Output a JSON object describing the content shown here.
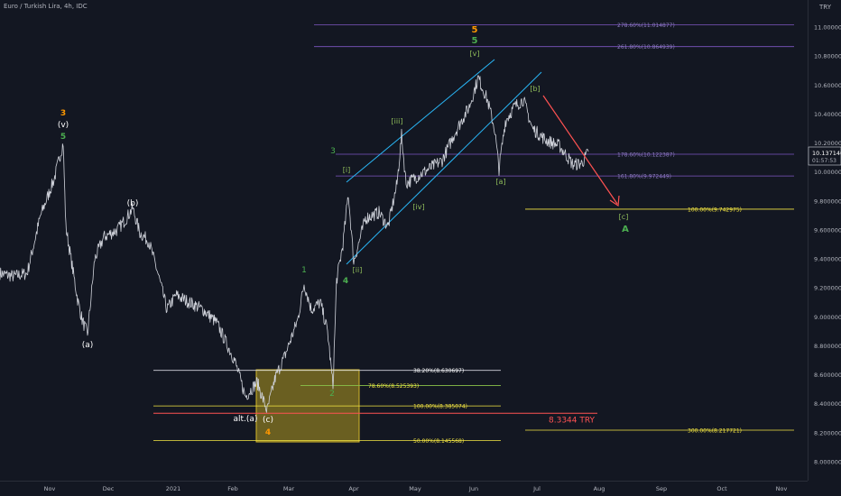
{
  "header": {
    "symbol": "Euro / Turkish Lira, 4h, IDC",
    "currency": "TRY"
  },
  "colors": {
    "background": "#131722",
    "price_line": "#d1d4dc",
    "axis_text": "#b2b5be",
    "fib_blue": "#7e57c2",
    "fib_yellow": "#f5e742",
    "fib_white": "#d1d4dc",
    "fib_green": "#8bc34a",
    "channel": "#29b6f6",
    "arrow": "#ff5252",
    "target_box": "#b39a21",
    "wave_orange": "#ff9800",
    "wave_green": "#4caf50",
    "wave_white": "#ffffff",
    "wave_olive": "#8fbc5a"
  },
  "chart_data": {
    "type": "line",
    "title": "Euro / Turkish Lira, 4h, IDC",
    "xlabel": "",
    "ylabel": "",
    "ylim": [
      7.95,
      11.15
    ],
    "x_ticks": [
      "Nov",
      "Dec",
      "2021",
      "Feb",
      "Mar",
      "Apr",
      "May",
      "Jun",
      "Jul",
      "Aug",
      "Sep",
      "Oct",
      "Nov"
    ],
    "y_ticks": [
      "11.000000",
      "10.800000",
      "10.600000",
      "10.400000",
      "10.200000",
      "10.000000",
      "9.800000",
      "9.600000",
      "9.400000",
      "9.200000",
      "9.000000",
      "8.800000",
      "8.600000",
      "8.400000",
      "8.200000",
      "8.000000"
    ],
    "y_tick_values": [
      11.0,
      10.8,
      10.6,
      10.4,
      10.2,
      10.0,
      9.8,
      9.6,
      9.4,
      9.2,
      9.0,
      8.8,
      8.6,
      8.4,
      8.2,
      8.0
    ],
    "series": [
      {
        "values": [
          [
            0,
            9.3
          ],
          [
            15,
            9.28
          ],
          [
            30,
            9.3
          ],
          [
            45,
            9.7
          ],
          [
            60,
            9.95
          ],
          [
            70,
            10.2
          ],
          [
            73,
            9.62
          ],
          [
            80,
            9.35
          ],
          [
            86,
            9.12
          ],
          [
            91,
            8.98
          ],
          [
            97,
            8.88
          ],
          [
            105,
            9.4
          ],
          [
            115,
            9.55
          ],
          [
            130,
            9.6
          ],
          [
            140,
            9.68
          ],
          [
            147,
            9.75
          ],
          [
            155,
            9.58
          ],
          [
            165,
            9.52
          ],
          [
            175,
            9.3
          ],
          [
            185,
            9.05
          ],
          [
            195,
            9.15
          ],
          [
            210,
            9.1
          ],
          [
            225,
            9.05
          ],
          [
            240,
            8.96
          ],
          [
            260,
            8.7
          ],
          [
            272,
            8.45
          ],
          [
            285,
            8.55
          ],
          [
            296,
            8.35
          ],
          [
            305,
            8.58
          ],
          [
            315,
            8.72
          ],
          [
            330,
            8.98
          ],
          [
            337,
            9.23
          ],
          [
            345,
            9.05
          ],
          [
            355,
            9.1
          ],
          [
            363,
            8.9
          ],
          [
            369,
            8.52
          ],
          [
            373,
            9.25
          ],
          [
            380,
            9.5
          ],
          [
            386,
            9.85
          ],
          [
            392,
            9.38
          ],
          [
            405,
            9.68
          ],
          [
            420,
            9.72
          ],
          [
            430,
            9.62
          ],
          [
            440,
            9.92
          ],
          [
            445,
            10.25
          ],
          [
            450,
            9.92
          ],
          [
            470,
            10.0
          ],
          [
            490,
            10.08
          ],
          [
            505,
            10.28
          ],
          [
            520,
            10.45
          ],
          [
            530,
            10.65
          ],
          [
            540,
            10.5
          ],
          [
            548,
            10.3
          ],
          [
            553,
            10.02
          ],
          [
            560,
            10.35
          ],
          [
            570,
            10.45
          ],
          [
            580,
            10.5
          ],
          [
            590,
            10.3
          ],
          [
            605,
            10.22
          ],
          [
            620,
            10.18
          ],
          [
            635,
            10.05
          ],
          [
            645,
            10.06
          ],
          [
            652,
            10.14
          ]
        ]
      }
    ],
    "fib_levels": [
      {
        "label": "278.60%(11.014877)",
        "value": 11.014877
      },
      {
        "label": "261.80%(10.864939)",
        "value": 10.864939
      },
      {
        "label": "178.60%(10.122387)",
        "value": 10.122387
      },
      {
        "label": "161.80%(9.972449)",
        "value": 9.972449
      },
      {
        "label": "100.00%(9.742975)",
        "value": 9.742975
      },
      {
        "label": "38.20%(8.630697)",
        "value": 8.630697
      },
      {
        "label": "78.60%(8.525393)",
        "value": 8.525393
      },
      {
        "label": "100.00%(8.385074)",
        "value": 8.385074
      },
      {
        "label": "50.00%(8.145568)",
        "value": 8.145568
      },
      {
        "label": "300.00%(8.217721)",
        "value": 8.217721
      }
    ],
    "support_line": {
      "label": "8.3344 TRY",
      "value": 8.3344
    },
    "last_price": {
      "value": "10.137140",
      "countdown": "01:57:53"
    },
    "wave_labels": [
      "3",
      "(v)",
      "5",
      "(a)",
      "(b)",
      "alt.(a)",
      "(c)",
      "4",
      "1",
      "2",
      "3",
      "4",
      "[i]",
      "[ii]",
      "[iii]",
      "[iv]",
      "[v]",
      "5",
      "5",
      "[a]",
      "[b]",
      "[c]",
      "A"
    ]
  }
}
